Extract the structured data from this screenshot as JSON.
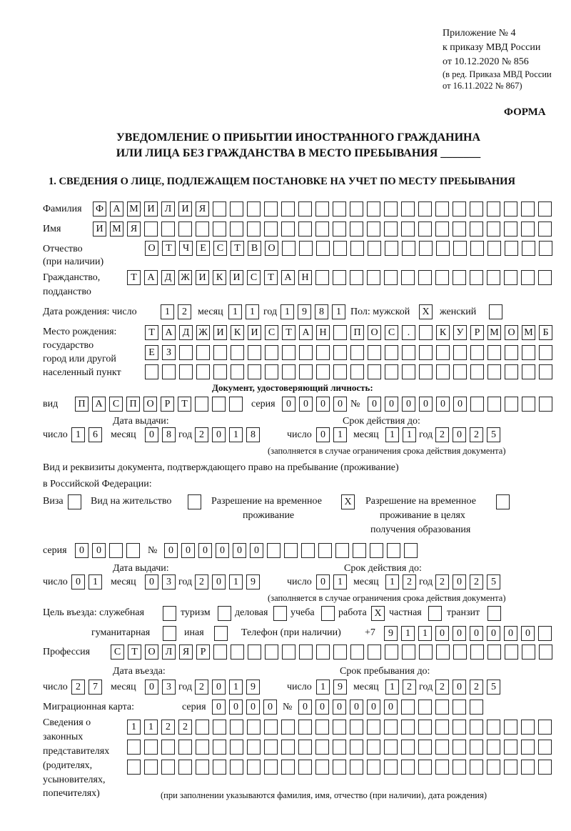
{
  "header": {
    "appendix": "Приложение № 4",
    "order": "к приказу МВД России",
    "date": "от 10.12.2020 № 856",
    "edition1": "(в ред. Приказа МВД России",
    "edition2": "от 16.11.2022 № 867)",
    "form_label": "ФОРМА",
    "title1": "УВЕДОМЛЕНИЕ О ПРИБЫТИИ ИНОСТРАННОГО ГРАЖДАНИНА",
    "title2": "ИЛИ ЛИЦА БЕЗ ГРАЖДАНСТВА В МЕСТО ПРЕБЫВАНИЯ _______",
    "section1": "1. СВЕДЕНИЯ О ЛИЦЕ, ПОДЛЕЖАЩЕМ ПОСТАНОВКЕ НА УЧЕТ ПО МЕСТУ ПРЕБЫВАНИЯ"
  },
  "labels": {
    "surname": "Фамилия",
    "name": "Имя",
    "patronymic1": "Отчество",
    "patronymic2": "(при наличии)",
    "citizenship1": "Гражданство,",
    "citizenship2": "подданство",
    "dob": "Дата рождения:  число",
    "day": "число",
    "month": "месяц",
    "year": "год",
    "sex": "Пол: мужской",
    "female": "женский",
    "pob1": "Место рождения:",
    "pob2": "государство",
    "pob3": "город или другой",
    "pob4": "населенный пункт",
    "id_doc": "Документ, удостоверяющий личность:",
    "kind": "вид",
    "series": "серия",
    "number": "№",
    "issue_date": "Дата выдачи:",
    "valid_until": "Срок действия до:",
    "valid_note": "(заполняется в случае ограничения срока действия документа)",
    "stay_doc1": "Вид и реквизиты документа, подтверждающего право на пребывание (проживание)",
    "stay_doc2": "в Российской Федерации:",
    "visa": "Виза",
    "residence": "Вид на жительство",
    "trp1": "Разрешение на временное",
    "trp2": "проживание",
    "trp_edu1": "Разрешение на временное",
    "trp_edu2": "проживание в целях",
    "trp_edu3": "получения образования",
    "purpose": "Цель въезда: служебная",
    "tourism": "туризм",
    "business": "деловая",
    "study": "учеба",
    "work": "работа",
    "private": "частная",
    "transit": "транзит",
    "humanitarian": "гуманитарная",
    "other": "иная",
    "phone": "Телефон (при наличии)",
    "phone_prefix": "+7",
    "profession": "Профессия",
    "entry_date": "Дата въезда:",
    "stay_until": "Срок пребывания до:",
    "migration_card": "Миграционная карта:",
    "reps1": "Сведения о",
    "reps2": "законных",
    "reps3": "представителях",
    "reps4": "(родителях,",
    "reps5": "усыновителях,",
    "reps6": "попечителях)",
    "reps_note": "(при заполнении указываются фамилия, имя, отчество (при наличии), дата рождения)"
  },
  "person": {
    "surname": "ФАМИЛИЯ",
    "name": "ИМЯ",
    "patronymic": "ОТЧЕСТВО",
    "citizenship": "ТАДЖИКИСТАН",
    "dob": {
      "day": "12",
      "month": "11",
      "year": "1981"
    },
    "sex_male": "X",
    "sex_female": "",
    "pob_line1": "ТАДЖИКИСТАН ПОС. КУРМОМБ",
    "pob_line2": "ЕЗ",
    "pob_line3": ""
  },
  "id_document": {
    "kind": "ПАСПОРТ",
    "series": "0000",
    "number": "000000",
    "issue": {
      "day": "16",
      "month": "08",
      "year": "2018"
    },
    "valid": {
      "day": "01",
      "month": "11",
      "year": "2025"
    }
  },
  "stay_document": {
    "visa": "",
    "residence": "",
    "trp": "X",
    "trp_edu": "",
    "series": "00",
    "number": "000000",
    "issue": {
      "day": "01",
      "month": "03",
      "year": "2019"
    },
    "valid": {
      "day": "01",
      "month": "12",
      "year": "2025"
    }
  },
  "purpose": {
    "official": "",
    "tourism": "",
    "business": "",
    "study": "",
    "work": "X",
    "private": "",
    "transit": "",
    "humanitarian": "",
    "other": ""
  },
  "phone": "911000000",
  "profession": "СТОЛЯР",
  "entry": {
    "day": "27",
    "month": "03",
    "year": "2019"
  },
  "stay_until": {
    "day": "19",
    "month": "12",
    "year": "2025"
  },
  "migration_card": {
    "series": "0000",
    "number": "000000"
  },
  "representatives": {
    "line1": "1122",
    "line2": "",
    "line3": ""
  }
}
